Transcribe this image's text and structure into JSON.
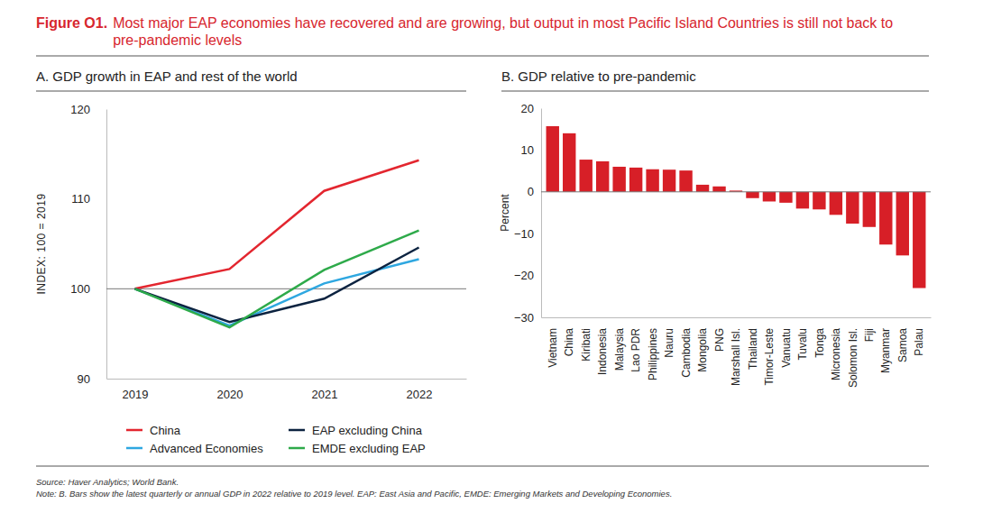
{
  "figure": {
    "label": "Figure O1.",
    "title": "Most major EAP economies have recovered and are growing, but output in most Pacific Island Countries is still not back to pre-pandemic levels",
    "source": "Source: Haver Analytics; World Bank.",
    "note": "Note: B. Bars show the latest quarterly or annual GDP in 2022 relative to 2019 level. EAP: East Asia and Pacific, EMDE: Emerging Markets and Developing Economies."
  },
  "chart_data": [
    {
      "type": "line",
      "title": "A. GDP growth in EAP and rest of the world",
      "y_label": "INDEX: 100 = 2019",
      "x": [
        2019,
        2020,
        2021,
        2022
      ],
      "series": [
        {
          "name": "China",
          "color": "#e3262f",
          "values": [
            100,
            102.2,
            110.9,
            114.3
          ]
        },
        {
          "name": "Advanced Economies",
          "color": "#2ea7e0",
          "values": [
            100,
            95.9,
            100.6,
            103.3
          ]
        },
        {
          "name": "EAP excluding China",
          "color": "#0c2340",
          "values": [
            100,
            96.3,
            98.9,
            104.6
          ]
        },
        {
          "name": "EMDE excluding EAP",
          "color": "#2eaa4a",
          "values": [
            100,
            95.7,
            102.1,
            106.5
          ]
        }
      ],
      "xlim": [
        2018.7,
        2022.5
      ],
      "xticks": [
        2019,
        2020,
        2021,
        2022
      ],
      "ylim": [
        90,
        120
      ],
      "yticks": [
        90,
        100,
        110,
        120
      ],
      "baseline": 100,
      "grid": false,
      "legend": "bottom"
    },
    {
      "type": "bar",
      "title": "B. GDP relative to pre-pandemic",
      "y_label": "Percent",
      "categories": [
        "Vietnam",
        "China",
        "Kiribati",
        "Indonesia",
        "Malaysia",
        "Lao PDR",
        "Philippines",
        "Nauru",
        "Cambodia",
        "Mongolia",
        "PNG",
        "Marshall Isl.",
        "Thailand",
        "Timor-Leste",
        "Vanuatu",
        "Tuvalu",
        "Tonga",
        "Micronesia",
        "Solomon Isl.",
        "Fiji",
        "Myanmar",
        "Samoa",
        "Palau"
      ],
      "values": [
        15.7,
        14.0,
        7.7,
        7.3,
        6.0,
        5.8,
        5.4,
        5.3,
        5.1,
        1.7,
        1.3,
        0.3,
        -1.5,
        -2.3,
        -2.6,
        -4.0,
        -4.2,
        -5.5,
        -7.6,
        -8.4,
        -12.6,
        -15.2,
        -23.0
      ],
      "color": "#d71f27",
      "ylim": [
        -30,
        20
      ],
      "yticks": [
        {
          "value": -30,
          "label": "−30"
        },
        {
          "value": -20,
          "label": "−20"
        },
        {
          "value": -10,
          "label": "−10"
        },
        0,
        10,
        20
      ],
      "baseline": 0,
      "grid": false
    }
  ]
}
